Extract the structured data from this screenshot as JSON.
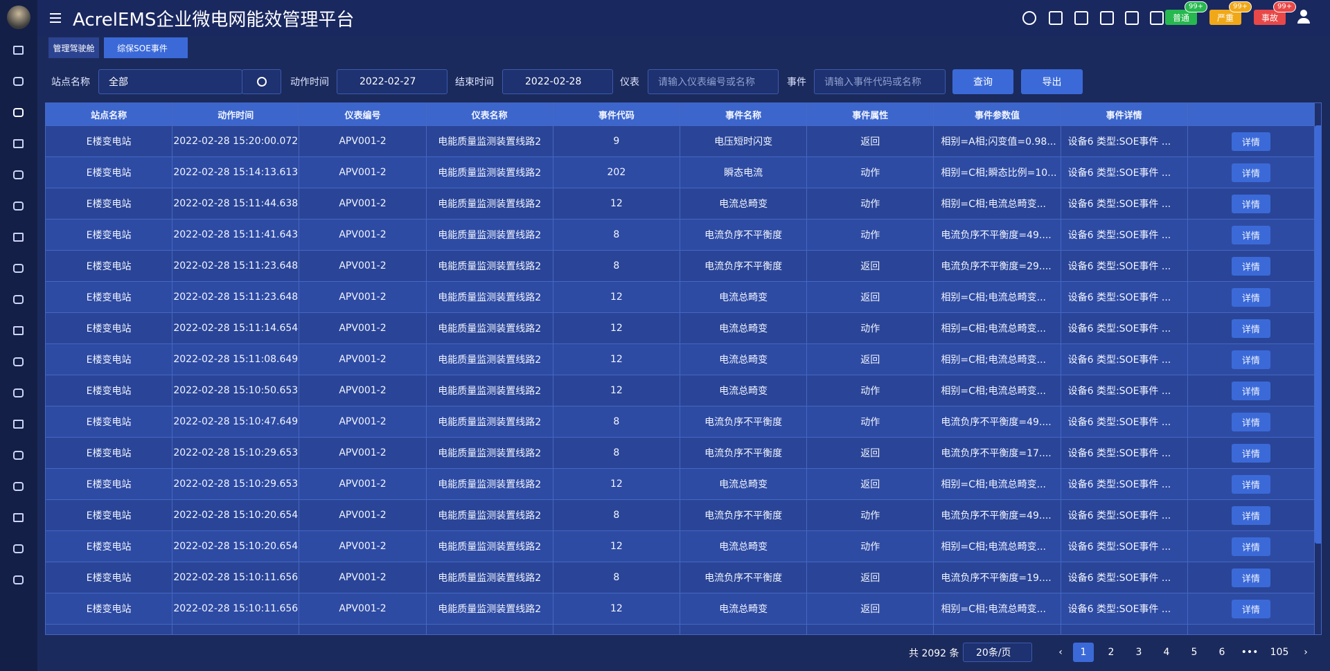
{
  "header": {
    "title": "AcrelEMS企业微电网能效管理平台",
    "alarms": [
      {
        "label": "普通",
        "count": "99+"
      },
      {
        "label": "严重",
        "count": "99+"
      },
      {
        "label": "事故",
        "count": "99+"
      }
    ]
  },
  "tabs": [
    "管理驾驶舱",
    "综保SOE事件"
  ],
  "filters": {
    "station_label": "站点名称",
    "station_value": "全部",
    "start_label": "动作时间",
    "start_value": "2022-02-27",
    "end_label": "结束时间",
    "end_value": "2022-02-28",
    "meter_label": "仪表",
    "meter_placeholder": "请输入仪表编号或名称",
    "event_label": "事件",
    "event_placeholder": "请输入事件代码或名称",
    "query_button": "查询",
    "export_button": "导出"
  },
  "table": {
    "columns": [
      "站点名称",
      "动作时间",
      "仪表编号",
      "仪表名称",
      "事件代码",
      "事件名称",
      "事件属性",
      "事件参数值",
      "事件详情",
      ""
    ],
    "rows": [
      [
        "E楼变电站",
        "2022-02-28 15:20:00.072",
        "APV001-2",
        "电能质量监测装置线路2",
        "9",
        "电压短时闪变",
        "返回",
        "相别=A相;闪变值=0.98...",
        "设备6 类型:SOE事件 ...",
        "详情"
      ],
      [
        "E楼变电站",
        "2022-02-28 15:14:13.613",
        "APV001-2",
        "电能质量监测装置线路2",
        "202",
        "瞬态电流",
        "动作",
        "相别=C相;瞬态比例=10...",
        "设备6 类型:SOE事件 ...",
        "详情"
      ],
      [
        "E楼变电站",
        "2022-02-28 15:11:44.638",
        "APV001-2",
        "电能质量监测装置线路2",
        "12",
        "电流总畸变",
        "动作",
        "相别=C相;电流总畸变...",
        "设备6 类型:SOE事件 ...",
        "详情"
      ],
      [
        "E楼变电站",
        "2022-02-28 15:11:41.643",
        "APV001-2",
        "电能质量监测装置线路2",
        "8",
        "电流负序不平衡度",
        "动作",
        "电流负序不平衡度=49....",
        "设备6 类型:SOE事件 ...",
        "详情"
      ],
      [
        "E楼变电站",
        "2022-02-28 15:11:23.648",
        "APV001-2",
        "电能质量监测装置线路2",
        "8",
        "电流负序不平衡度",
        "返回",
        "电流负序不平衡度=29....",
        "设备6 类型:SOE事件 ...",
        "详情"
      ],
      [
        "E楼变电站",
        "2022-02-28 15:11:23.648",
        "APV001-2",
        "电能质量监测装置线路2",
        "12",
        "电流总畸变",
        "返回",
        "相别=C相;电流总畸变...",
        "设备6 类型:SOE事件 ...",
        "详情"
      ],
      [
        "E楼变电站",
        "2022-02-28 15:11:14.654",
        "APV001-2",
        "电能质量监测装置线路2",
        "12",
        "电流总畸变",
        "动作",
        "相别=C相;电流总畸变...",
        "设备6 类型:SOE事件 ...",
        "详情"
      ],
      [
        "E楼变电站",
        "2022-02-28 15:11:08.649",
        "APV001-2",
        "电能质量监测装置线路2",
        "12",
        "电流总畸变",
        "返回",
        "相别=C相;电流总畸变...",
        "设备6 类型:SOE事件 ...",
        "详情"
      ],
      [
        "E楼变电站",
        "2022-02-28 15:10:50.653",
        "APV001-2",
        "电能质量监测装置线路2",
        "12",
        "电流总畸变",
        "动作",
        "相别=C相;电流总畸变...",
        "设备6 类型:SOE事件 ...",
        "详情"
      ],
      [
        "E楼变电站",
        "2022-02-28 15:10:47.649",
        "APV001-2",
        "电能质量监测装置线路2",
        "8",
        "电流负序不平衡度",
        "动作",
        "电流负序不平衡度=49....",
        "设备6 类型:SOE事件 ...",
        "详情"
      ],
      [
        "E楼变电站",
        "2022-02-28 15:10:29.653",
        "APV001-2",
        "电能质量监测装置线路2",
        "8",
        "电流负序不平衡度",
        "返回",
        "电流负序不平衡度=17....",
        "设备6 类型:SOE事件 ...",
        "详情"
      ],
      [
        "E楼变电站",
        "2022-02-28 15:10:29.653",
        "APV001-2",
        "电能质量监测装置线路2",
        "12",
        "电流总畸变",
        "返回",
        "相别=C相;电流总畸变...",
        "设备6 类型:SOE事件 ...",
        "详情"
      ],
      [
        "E楼变电站",
        "2022-02-28 15:10:20.654",
        "APV001-2",
        "电能质量监测装置线路2",
        "8",
        "电流负序不平衡度",
        "动作",
        "电流负序不平衡度=49....",
        "设备6 类型:SOE事件 ...",
        "详情"
      ],
      [
        "E楼变电站",
        "2022-02-28 15:10:20.654",
        "APV001-2",
        "电能质量监测装置线路2",
        "12",
        "电流总畸变",
        "动作",
        "相别=C相;电流总畸变...",
        "设备6 类型:SOE事件 ...",
        "详情"
      ],
      [
        "E楼变电站",
        "2022-02-28 15:10:11.656",
        "APV001-2",
        "电能质量监测装置线路2",
        "8",
        "电流负序不平衡度",
        "返回",
        "电流负序不平衡度=19....",
        "设备6 类型:SOE事件 ...",
        "详情"
      ],
      [
        "E楼变电站",
        "2022-02-28 15:10:11.656",
        "APV001-2",
        "电能质量监测装置线路2",
        "12",
        "电流总畸变",
        "返回",
        "相别=C相;电流总畸变...",
        "设备6 类型:SOE事件 ...",
        "详情"
      ]
    ]
  },
  "pagination": {
    "total": "共 2092 条",
    "page_size": "20条/页",
    "pages": [
      "1",
      "2",
      "3",
      "4",
      "5",
      "6",
      "•••",
      "105"
    ]
  }
}
